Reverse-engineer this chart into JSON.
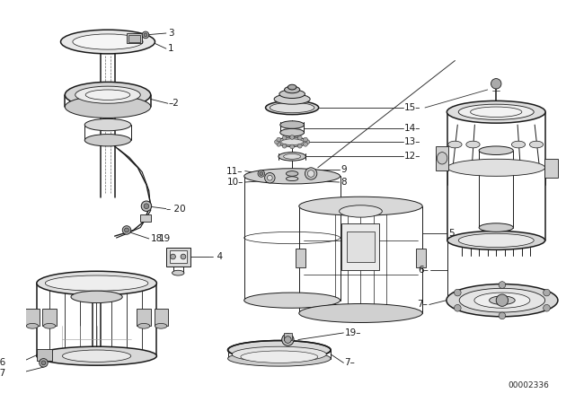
{
  "background_color": "#ffffff",
  "line_color": "#1a1a1a",
  "fig_width": 6.4,
  "fig_height": 4.48,
  "dpi": 100,
  "watermark": "00002336",
  "lw": 0.7,
  "lw_thick": 1.1
}
